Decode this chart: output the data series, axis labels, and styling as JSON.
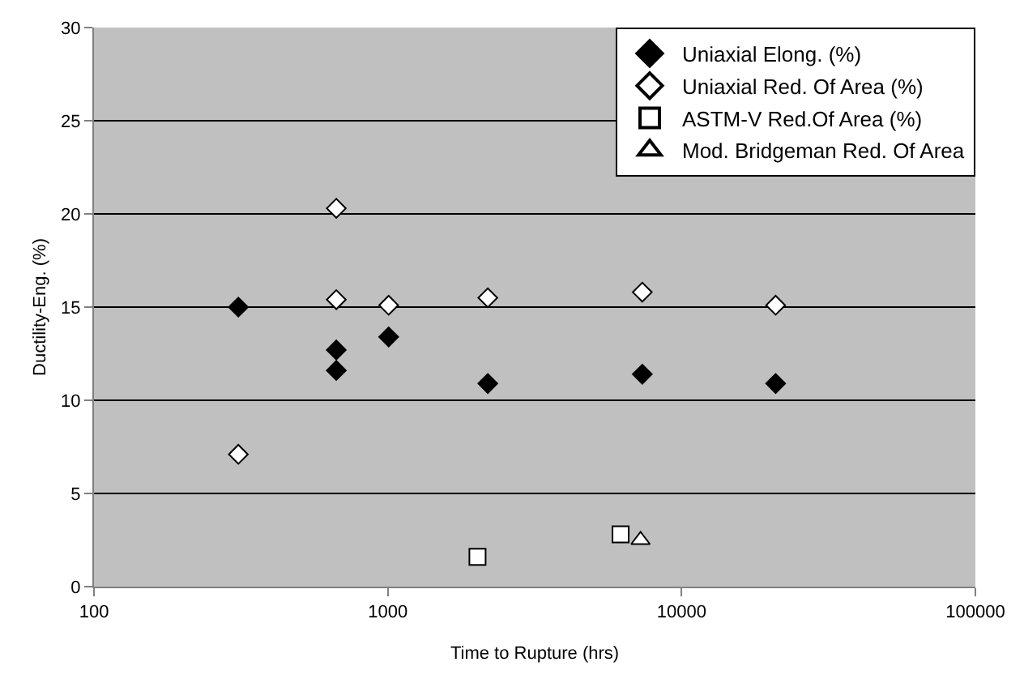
{
  "chart_data": {
    "type": "scatter",
    "xlabel": "Time to Rupture (hrs)",
    "ylabel": "Ductility-Eng. (%)",
    "log": "x",
    "grid": "y",
    "legend": "top right",
    "xlim": [
      100,
      100000
    ],
    "xticks": [
      100,
      1000,
      10000,
      100000
    ],
    "ylim": [
      0,
      30
    ],
    "yticks": [
      0,
      5,
      10,
      15,
      20,
      25,
      30
    ],
    "series": [
      {
        "name": "Uniaxial Elong. (%)",
        "color": "#000000",
        "marker": "diamond",
        "x": [
          310,
          668,
          668,
          1007,
          2190,
          7350,
          20900
        ],
        "values": [
          15.0,
          12.7,
          11.6,
          13.4,
          10.9,
          11.4,
          10.9
        ]
      },
      {
        "name": "Uniaxial Red. Of Area (%)",
        "color": "#ffffff",
        "marker": "diamond",
        "x": [
          310,
          668,
          668,
          1007,
          2190,
          7350,
          20900
        ],
        "values": [
          7.1,
          20.3,
          15.4,
          15.1,
          15.5,
          15.8,
          15.1
        ]
      },
      {
        "name": "ASTM-V Red.Of Area (%)",
        "color": "#ffffff",
        "marker": "square",
        "x": [
          2020,
          6200
        ],
        "values": [
          1.6,
          2.8
        ]
      },
      {
        "name": "Mod. Bridgeman Red. Of Area",
        "color": "#ffffff",
        "marker": "triangle",
        "x": [
          7250
        ],
        "values": [
          2.5
        ]
      }
    ]
  }
}
